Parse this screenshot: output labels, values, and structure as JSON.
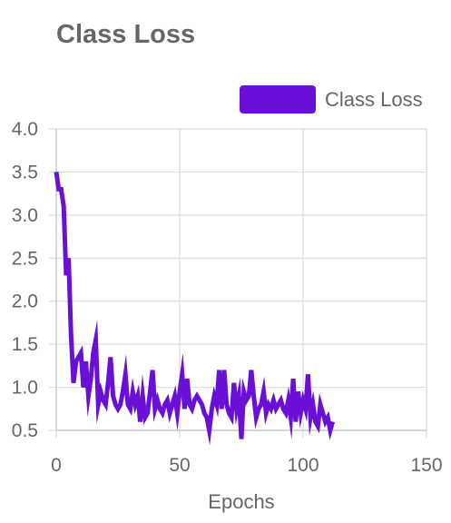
{
  "chart_data": {
    "type": "line",
    "title": "Class Loss",
    "xlabel": "Epochs",
    "ylabel": "",
    "xlim": [
      0,
      150
    ],
    "ylim": [
      0.5,
      4.0
    ],
    "x_ticks": [
      0,
      50,
      100,
      150
    ],
    "y_ticks": [
      0.5,
      1.0,
      1.5,
      2.0,
      2.5,
      3.0,
      3.5,
      4.0
    ],
    "x_tick_labels": [
      "0",
      "50",
      "100",
      "150"
    ],
    "y_tick_labels": [
      "0.5",
      "1.0",
      "1.5",
      "2.0",
      "2.5",
      "3.0",
      "3.5",
      "4.0"
    ],
    "grid": true,
    "legend_position": "top-right",
    "series": [
      {
        "name": "Class Loss",
        "color": "#6a0fd6",
        "x": [
          0,
          1,
          2,
          3,
          4,
          5,
          6,
          7,
          8,
          9,
          10,
          11,
          12,
          13,
          14,
          15,
          16,
          17,
          18,
          19,
          20,
          21,
          22,
          23,
          24,
          25,
          26,
          27,
          28,
          29,
          30,
          31,
          32,
          33,
          34,
          35,
          36,
          37,
          38,
          39,
          40,
          41,
          42,
          43,
          44,
          45,
          46,
          47,
          48,
          49,
          50,
          51,
          52,
          53,
          54,
          55,
          56,
          57,
          58,
          59,
          60,
          61,
          62,
          63,
          64,
          65,
          66,
          67,
          68,
          69,
          70,
          71,
          72,
          73,
          74,
          75,
          76,
          77,
          78,
          79,
          80,
          81,
          82,
          83,
          84,
          85,
          86,
          87,
          88,
          89,
          90,
          91,
          92,
          93,
          94,
          95,
          96,
          97,
          98,
          99,
          100,
          101,
          102,
          103,
          104,
          105,
          106,
          107,
          108,
          109,
          110,
          111,
          112
        ],
        "values": [
          3.5,
          3.3,
          3.3,
          3.1,
          2.3,
          2.5,
          1.6,
          1.05,
          1.3,
          1.35,
          1.4,
          1.0,
          1.3,
          0.9,
          1.1,
          1.4,
          1.55,
          0.8,
          0.95,
          0.85,
          0.8,
          1.05,
          1.35,
          0.9,
          0.8,
          0.75,
          0.8,
          0.95,
          1.15,
          0.8,
          0.75,
          0.95,
          0.8,
          0.9,
          0.6,
          0.9,
          0.65,
          0.7,
          0.95,
          1.2,
          0.75,
          0.85,
          0.75,
          0.7,
          0.8,
          0.85,
          0.7,
          0.8,
          0.9,
          0.7,
          0.95,
          1.15,
          0.75,
          1.1,
          0.8,
          0.75,
          0.85,
          0.9,
          0.85,
          0.8,
          0.7,
          0.65,
          0.5,
          0.75,
          0.9,
          0.8,
          1.2,
          0.75,
          1.2,
          0.8,
          0.7,
          0.65,
          1.05,
          0.75,
          0.9,
          0.4,
          0.95,
          0.85,
          0.9,
          1.2,
          0.9,
          0.65,
          0.75,
          0.8,
          0.95,
          0.7,
          0.8,
          0.75,
          0.85,
          0.75,
          0.8,
          0.85,
          0.75,
          0.7,
          0.85,
          0.65,
          1.1,
          0.6,
          0.95,
          0.7,
          0.85,
          0.75,
          1.15,
          0.65,
          0.8,
          0.6,
          0.55,
          0.8,
          0.7,
          0.6,
          0.65,
          0.5,
          0.6
        ]
      }
    ]
  }
}
